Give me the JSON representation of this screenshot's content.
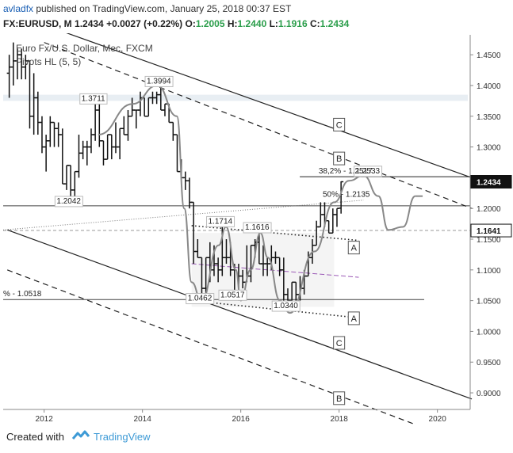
{
  "header": {
    "user": "avladfx",
    "published_text": "published on TradingView.com, January 25, 2018 00:37 EST",
    "symbol": "FX:EURUSD, M",
    "last": "1.2434",
    "change": "+0.0027 (+0.22%)",
    "open_label": "O:",
    "open": "1.2005",
    "high_label": "H:",
    "high": "1.2440",
    "low_label": "L:",
    "low": "1.1916",
    "close_label": "C:",
    "close": "1.2434"
  },
  "chart_title": "Euro Fx/U.S. Dollar, Mec, FXCM",
  "indicator": "Pivots HL (5, 5)",
  "footer": {
    "created": "Created with",
    "brand": "TradingView"
  },
  "colors": {
    "up": "#2a9d4a",
    "link": "#1a5fb4",
    "tv_blue": "#3d9ad6",
    "midline": "#9b59b6",
    "price_tag": "#111111"
  },
  "chart_data": {
    "type": "ohlc",
    "xlim": [
      "2011-03",
      "2020-09"
    ],
    "ylim": [
      0.873,
      1.4824
    ],
    "x_ticks": [
      "2012",
      "2014",
      "2016",
      "2018",
      "2020"
    ],
    "y_ticks": [
      "1.4500",
      "1.4000",
      "1.3500",
      "1.3000",
      "1.2500",
      "1.2000",
      "1.1500",
      "1.1000",
      "1.0500",
      "1.0000",
      "0.9500",
      "0.9000"
    ],
    "price_tags": [
      "1.2434",
      "1.1641"
    ],
    "annotations": [
      {
        "text": "1.3994",
        "date": "2014-05",
        "price": 1.3994
      },
      {
        "text": "1.3711",
        "date": "2013-01",
        "price": 1.3711
      },
      {
        "text": "1.2042",
        "date": "2012-07",
        "price": 1.2042
      },
      {
        "text": "1.1714",
        "date": "2015-08",
        "price": 1.1714
      },
      {
        "text": "1.1616",
        "date": "2016-05",
        "price": 1.1616
      },
      {
        "text": "1.0462",
        "date": "2015-03",
        "price": 1.0462
      },
      {
        "text": "1.0517",
        "date": "2015-11",
        "price": 1.0517
      },
      {
        "text": "1.0340",
        "date": "2016-12",
        "price": 1.034
      },
      {
        "text": "1.2533",
        "date": "2018-08",
        "price": 1.2533
      },
      {
        "text": "38,2% - 1.2517",
        "date": "2017-08",
        "price": 1.2517
      },
      {
        "text": "50% - 1.2135",
        "date": "2017-09",
        "price": 1.2135
      },
      {
        "text": "% - 1.0518",
        "date": "2011-03",
        "price": 1.0518
      }
    ],
    "channel_labels": [
      "C",
      "B",
      "A",
      "A",
      "C",
      "B"
    ],
    "bars": [
      {
        "d": "2011-04",
        "o": 1.42,
        "h": 1.45,
        "l": 1.38,
        "c": 1.43
      },
      {
        "d": "2011-05",
        "o": 1.43,
        "h": 1.47,
        "l": 1.4,
        "c": 1.44
      },
      {
        "d": "2011-06",
        "o": 1.44,
        "h": 1.46,
        "l": 1.41,
        "c": 1.45
      },
      {
        "d": "2011-07",
        "o": 1.45,
        "h": 1.46,
        "l": 1.41,
        "c": 1.43
      },
      {
        "d": "2011-08",
        "o": 1.43,
        "h": 1.45,
        "l": 1.41,
        "c": 1.44
      },
      {
        "d": "2011-09",
        "o": 1.44,
        "h": 1.44,
        "l": 1.33,
        "c": 1.35
      },
      {
        "d": "2011-10",
        "o": 1.35,
        "h": 1.42,
        "l": 1.32,
        "c": 1.38
      },
      {
        "d": "2011-11",
        "o": 1.38,
        "h": 1.39,
        "l": 1.32,
        "c": 1.34
      },
      {
        "d": "2011-12",
        "o": 1.34,
        "h": 1.35,
        "l": 1.29,
        "c": 1.3
      },
      {
        "d": "2012-01",
        "o": 1.3,
        "h": 1.32,
        "l": 1.26,
        "c": 1.31
      },
      {
        "d": "2012-02",
        "o": 1.31,
        "h": 1.35,
        "l": 1.3,
        "c": 1.34
      },
      {
        "d": "2012-03",
        "o": 1.34,
        "h": 1.34,
        "l": 1.3,
        "c": 1.33
      },
      {
        "d": "2012-04",
        "o": 1.33,
        "h": 1.34,
        "l": 1.3,
        "c": 1.32
      },
      {
        "d": "2012-05",
        "o": 1.32,
        "h": 1.33,
        "l": 1.24,
        "c": 1.24
      },
      {
        "d": "2012-06",
        "o": 1.24,
        "h": 1.27,
        "l": 1.23,
        "c": 1.27
      },
      {
        "d": "2012-07",
        "o": 1.27,
        "h": 1.27,
        "l": 1.2042,
        "c": 1.23
      },
      {
        "d": "2012-08",
        "o": 1.23,
        "h": 1.26,
        "l": 1.22,
        "c": 1.26
      },
      {
        "d": "2012-09",
        "o": 1.26,
        "h": 1.32,
        "l": 1.25,
        "c": 1.29
      },
      {
        "d": "2012-10",
        "o": 1.29,
        "h": 1.31,
        "l": 1.28,
        "c": 1.3
      },
      {
        "d": "2012-11",
        "o": 1.3,
        "h": 1.31,
        "l": 1.27,
        "c": 1.3
      },
      {
        "d": "2012-12",
        "o": 1.3,
        "h": 1.33,
        "l": 1.29,
        "c": 1.32
      },
      {
        "d": "2013-01",
        "o": 1.32,
        "h": 1.3711,
        "l": 1.31,
        "c": 1.36
      },
      {
        "d": "2013-02",
        "o": 1.36,
        "h": 1.37,
        "l": 1.3,
        "c": 1.31
      },
      {
        "d": "2013-03",
        "o": 1.31,
        "h": 1.31,
        "l": 1.27,
        "c": 1.28
      },
      {
        "d": "2013-04",
        "o": 1.28,
        "h": 1.32,
        "l": 1.28,
        "c": 1.32
      },
      {
        "d": "2013-05",
        "o": 1.32,
        "h": 1.32,
        "l": 1.28,
        "c": 1.3
      },
      {
        "d": "2013-06",
        "o": 1.3,
        "h": 1.34,
        "l": 1.29,
        "c": 1.3
      },
      {
        "d": "2013-07",
        "o": 1.3,
        "h": 1.33,
        "l": 1.28,
        "c": 1.33
      },
      {
        "d": "2013-08",
        "o": 1.33,
        "h": 1.35,
        "l": 1.32,
        "c": 1.32
      },
      {
        "d": "2013-09",
        "o": 1.32,
        "h": 1.36,
        "l": 1.31,
        "c": 1.35
      },
      {
        "d": "2013-10",
        "o": 1.35,
        "h": 1.38,
        "l": 1.35,
        "c": 1.36
      },
      {
        "d": "2013-11",
        "o": 1.36,
        "h": 1.36,
        "l": 1.33,
        "c": 1.36
      },
      {
        "d": "2013-12",
        "o": 1.36,
        "h": 1.39,
        "l": 1.35,
        "c": 1.38
      },
      {
        "d": "2014-01",
        "o": 1.38,
        "h": 1.38,
        "l": 1.35,
        "c": 1.35
      },
      {
        "d": "2014-02",
        "o": 1.35,
        "h": 1.38,
        "l": 1.35,
        "c": 1.38
      },
      {
        "d": "2014-03",
        "o": 1.38,
        "h": 1.39,
        "l": 1.37,
        "c": 1.38
      },
      {
        "d": "2014-04",
        "o": 1.38,
        "h": 1.39,
        "l": 1.37,
        "c": 1.385
      },
      {
        "d": "2014-05",
        "o": 1.385,
        "h": 1.3994,
        "l": 1.36,
        "c": 1.36
      },
      {
        "d": "2014-06",
        "o": 1.36,
        "h": 1.37,
        "l": 1.35,
        "c": 1.37
      },
      {
        "d": "2014-07",
        "o": 1.37,
        "h": 1.37,
        "l": 1.34,
        "c": 1.34
      },
      {
        "d": "2014-08",
        "o": 1.34,
        "h": 1.34,
        "l": 1.31,
        "c": 1.32
      },
      {
        "d": "2014-09",
        "o": 1.32,
        "h": 1.32,
        "l": 1.26,
        "c": 1.26
      },
      {
        "d": "2014-10",
        "o": 1.26,
        "h": 1.28,
        "l": 1.25,
        "c": 1.25
      },
      {
        "d": "2014-11",
        "o": 1.25,
        "h": 1.26,
        "l": 1.23,
        "c": 1.245
      },
      {
        "d": "2014-12",
        "o": 1.245,
        "h": 1.25,
        "l": 1.2,
        "c": 1.21
      },
      {
        "d": "2015-01",
        "o": 1.21,
        "h": 1.21,
        "l": 1.11,
        "c": 1.13
      },
      {
        "d": "2015-02",
        "o": 1.13,
        "h": 1.15,
        "l": 1.12,
        "c": 1.12
      },
      {
        "d": "2015-03",
        "o": 1.12,
        "h": 1.12,
        "l": 1.0462,
        "c": 1.07
      },
      {
        "d": "2015-04",
        "o": 1.07,
        "h": 1.12,
        "l": 1.05,
        "c": 1.12
      },
      {
        "d": "2015-05",
        "o": 1.12,
        "h": 1.145,
        "l": 1.08,
        "c": 1.1
      },
      {
        "d": "2015-06",
        "o": 1.1,
        "h": 1.14,
        "l": 1.09,
        "c": 1.11
      },
      {
        "d": "2015-07",
        "o": 1.11,
        "h": 1.12,
        "l": 1.08,
        "c": 1.1
      },
      {
        "d": "2015-08",
        "o": 1.1,
        "h": 1.1714,
        "l": 1.09,
        "c": 1.12
      },
      {
        "d": "2015-09",
        "o": 1.12,
        "h": 1.15,
        "l": 1.11,
        "c": 1.12
      },
      {
        "d": "2015-10",
        "o": 1.12,
        "h": 1.145,
        "l": 1.09,
        "c": 1.1
      },
      {
        "d": "2015-11",
        "o": 1.1,
        "h": 1.11,
        "l": 1.0517,
        "c": 1.06
      },
      {
        "d": "2015-12",
        "o": 1.06,
        "h": 1.11,
        "l": 1.05,
        "c": 1.09
      },
      {
        "d": "2016-01",
        "o": 1.09,
        "h": 1.1,
        "l": 1.07,
        "c": 1.08
      },
      {
        "d": "2016-02",
        "o": 1.08,
        "h": 1.14,
        "l": 1.08,
        "c": 1.09
      },
      {
        "d": "2016-03",
        "o": 1.09,
        "h": 1.14,
        "l": 1.08,
        "c": 1.14
      },
      {
        "d": "2016-04",
        "o": 1.14,
        "h": 1.15,
        "l": 1.12,
        "c": 1.145
      },
      {
        "d": "2016-05",
        "o": 1.145,
        "h": 1.1616,
        "l": 1.11,
        "c": 1.11
      },
      {
        "d": "2016-06",
        "o": 1.11,
        "h": 1.14,
        "l": 1.09,
        "c": 1.11
      },
      {
        "d": "2016-07",
        "o": 1.11,
        "h": 1.12,
        "l": 1.09,
        "c": 1.11
      },
      {
        "d": "2016-08",
        "o": 1.11,
        "h": 1.14,
        "l": 1.1,
        "c": 1.12
      },
      {
        "d": "2016-09",
        "o": 1.12,
        "h": 1.13,
        "l": 1.11,
        "c": 1.12
      },
      {
        "d": "2016-10",
        "o": 1.12,
        "h": 1.12,
        "l": 1.09,
        "c": 1.1
      },
      {
        "d": "2016-11",
        "o": 1.1,
        "h": 1.12,
        "l": 1.05,
        "c": 1.06
      },
      {
        "d": "2016-12",
        "o": 1.06,
        "h": 1.07,
        "l": 1.034,
        "c": 1.05
      },
      {
        "d": "2017-01",
        "o": 1.05,
        "h": 1.08,
        "l": 1.04,
        "c": 1.08
      },
      {
        "d": "2017-02",
        "o": 1.08,
        "h": 1.08,
        "l": 1.05,
        "c": 1.06
      },
      {
        "d": "2017-03",
        "o": 1.06,
        "h": 1.09,
        "l": 1.05,
        "c": 1.07
      },
      {
        "d": "2017-04",
        "o": 1.07,
        "h": 1.1,
        "l": 1.06,
        "c": 1.09
      },
      {
        "d": "2017-05",
        "o": 1.09,
        "h": 1.13,
        "l": 1.09,
        "c": 1.12
      },
      {
        "d": "2017-06",
        "o": 1.12,
        "h": 1.15,
        "l": 1.11,
        "c": 1.14
      },
      {
        "d": "2017-07",
        "o": 1.14,
        "h": 1.18,
        "l": 1.14,
        "c": 1.17
      },
      {
        "d": "2017-08",
        "o": 1.17,
        "h": 1.21,
        "l": 1.17,
        "c": 1.19
      },
      {
        "d": "2017-09",
        "o": 1.19,
        "h": 1.21,
        "l": 1.17,
        "c": 1.18
      },
      {
        "d": "2017-10",
        "o": 1.18,
        "h": 1.18,
        "l": 1.16,
        "c": 1.16
      },
      {
        "d": "2017-11",
        "o": 1.16,
        "h": 1.2,
        "l": 1.16,
        "c": 1.19
      },
      {
        "d": "2017-12",
        "o": 1.19,
        "h": 1.2,
        "l": 1.17,
        "c": 1.2
      },
      {
        "d": "2018-01",
        "o": 1.2005,
        "h": 1.244,
        "l": 1.1916,
        "c": 1.2434
      }
    ]
  }
}
